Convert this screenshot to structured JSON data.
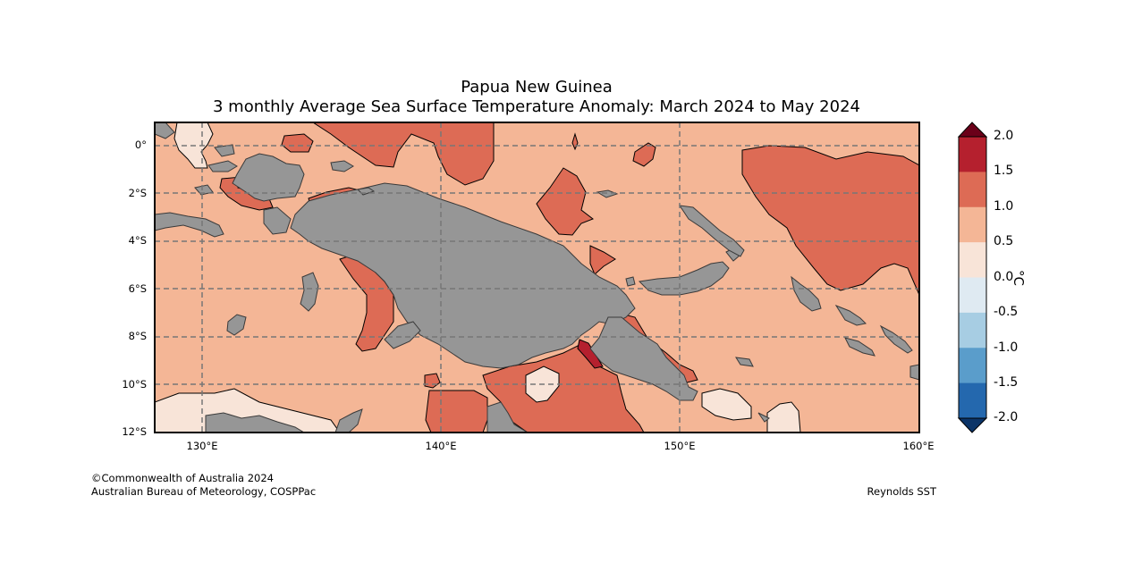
{
  "title": {
    "line1": "Papua New Guinea",
    "line2": "3 monthly Average Sea Surface Temperature Anomaly: March 2024 to May 2024"
  },
  "map": {
    "lat_ticks": [
      "0°",
      "2°S",
      "4°S",
      "6°S",
      "8°S",
      "10°S",
      "12°S"
    ],
    "lon_ticks": [
      "130°E",
      "140°E",
      "150°E",
      "160°E"
    ],
    "background_anomaly_class": "0.5 to 1.0",
    "colors": {
      "land": "#969696",
      "anom_0_to_0.5": "#f8e4d8",
      "anom_0.5_to_1.0": "#f4b696",
      "anom_1.0_to_1.5": "#dd6b55",
      "anom_1.5_to_2.0": "#b5202e"
    }
  },
  "colorbar": {
    "unit": "°C",
    "labels": [
      "2.0",
      "1.5",
      "1.0",
      "0.5",
      "0.0",
      "-0.5",
      "-1.0",
      "-1.5",
      "-2.0"
    ],
    "colors": [
      "#b5202e",
      "#dd6b55",
      "#f4b696",
      "#f8e4d8",
      "#dfeaf2",
      "#a7cde3",
      "#5a9dcb",
      "#2468ae"
    ],
    "over_color": "#6b0019",
    "under_color": "#0b3468"
  },
  "footer": {
    "credit_line1": "©Commonwealth of Australia 2024",
    "credit_line2": "Australian Bureau of Meteorology, COSPPac",
    "source": "Reynolds SST"
  }
}
